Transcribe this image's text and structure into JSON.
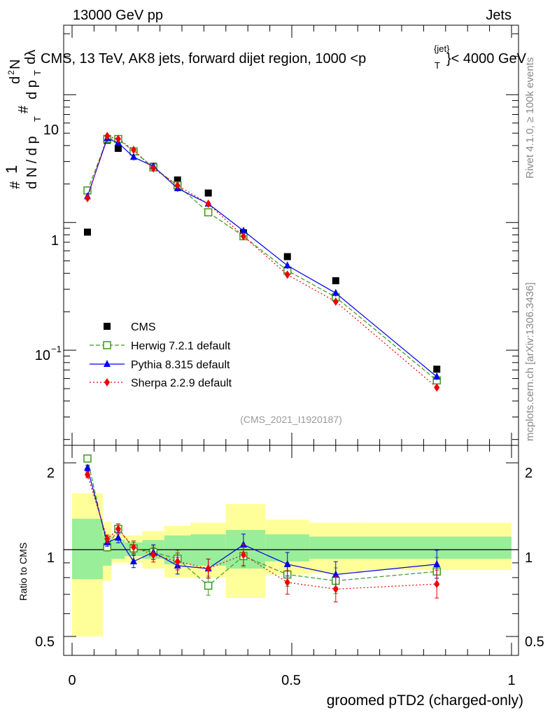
{
  "header": {
    "left": "13000 GeV pp",
    "right": "Jets"
  },
  "side_labels": {
    "rivet": "Rivet 4.1.0, ≥ 100k events",
    "mcplots": "mcplots.cern.ch [arXiv:1306.3436]"
  },
  "chart_data": [
    {
      "type": "scatter",
      "panel": "main",
      "title": "CMS, 13 TeV, AK8 jets, forward dijet region, 1000 <p",
      "title_super": "{jet}",
      "title_sub": "T",
      "title_tail": "}< 4000 GeV",
      "analysis_tag": "(CMS_2021_I1920187)",
      "ylabel_parts": [
        "#",
        "1",
        "d N / d p",
        "T",
        "#",
        "d p",
        "T",
        "d",
        "2",
        "N",
        "dλ"
      ],
      "yscale": "log",
      "ylim": [
        0.018,
        35
      ],
      "xlim": [
        -0.02,
        1.0
      ],
      "ytick_labels": [
        "10",
        "1",
        "10"
      ],
      "ytick_exp": "−1",
      "legend": [
        "CMS",
        "Herwig 7.2.1 default",
        "Pythia 8.315 default",
        "Sherpa 2.2.9 default"
      ],
      "x": [
        0.035,
        0.08,
        0.105,
        0.14,
        0.185,
        0.24,
        0.31,
        0.39,
        0.49,
        0.6,
        0.83
      ],
      "series": [
        {
          "name": "CMS",
          "color": "#000000",
          "marker": "square",
          "values": [
            0.84,
            4.4,
            3.8,
            3.6,
            2.75,
            2.15,
            1.7,
            0.83,
            0.54,
            0.35,
            0.071
          ]
        },
        {
          "name": "Herwig 7.2.1 default",
          "color": "#3a9a1a",
          "marker": "open-square",
          "dash": "6,3",
          "values": [
            1.78,
            4.5,
            4.5,
            3.6,
            2.7,
            1.95,
            1.2,
            0.78,
            0.42,
            0.26,
            0.058
          ]
        },
        {
          "name": "Pythia 8.315 default",
          "color": "#0000ee",
          "marker": "triangle",
          "dash": "",
          "values": [
            1.6,
            4.55,
            4.2,
            3.25,
            2.75,
            1.85,
            1.4,
            0.86,
            0.46,
            0.28,
            0.062
          ]
        },
        {
          "name": "Sherpa 2.2.9 default",
          "color": "#ee0000",
          "marker": "diamond",
          "dash": "2,3",
          "values": [
            1.55,
            4.75,
            4.5,
            3.7,
            2.65,
            1.95,
            1.4,
            0.78,
            0.39,
            0.24,
            0.051
          ]
        }
      ]
    },
    {
      "type": "scatter",
      "panel": "ratio",
      "ylabel": "Ratio to CMS",
      "xlabel": "groomed pTD2 (charged-only)",
      "yscale": "log",
      "ylim": [
        0.43,
        2.3
      ],
      "xlim": [
        -0.02,
        1.0
      ],
      "ytick_labels": [
        "2",
        "1",
        "0.5"
      ],
      "xtick_labels": [
        "0",
        "0.5",
        "1"
      ],
      "bins": [
        0,
        0.07,
        0.09,
        0.12,
        0.16,
        0.21,
        0.27,
        0.35,
        0.44,
        0.54,
        0.66,
        1.0
      ],
      "band_inner": [
        [
          0.79,
          1.28
        ],
        [
          0.88,
          1.12
        ],
        [
          0.93,
          1.08
        ],
        [
          0.95,
          1.06
        ],
        [
          0.93,
          1.08
        ],
        [
          0.89,
          1.12
        ],
        [
          0.88,
          1.13
        ],
        [
          0.86,
          1.17
        ],
        [
          0.91,
          1.13
        ],
        [
          0.93,
          1.11
        ],
        [
          0.93,
          1.11
        ]
      ],
      "band_outer": [
        [
          0.5,
          1.57
        ],
        [
          0.78,
          1.25
        ],
        [
          0.9,
          1.13
        ],
        [
          0.9,
          1.12
        ],
        [
          0.86,
          1.16
        ],
        [
          0.8,
          1.21
        ],
        [
          0.8,
          1.24
        ],
        [
          0.68,
          1.44
        ],
        [
          0.82,
          1.27
        ],
        [
          0.83,
          1.24
        ],
        [
          0.85,
          1.24
        ]
      ],
      "x": [
        0.035,
        0.08,
        0.105,
        0.14,
        0.185,
        0.24,
        0.31,
        0.39,
        0.49,
        0.6,
        0.83
      ],
      "series": [
        {
          "name": "Herwig 7.2.1 default",
          "color": "#3a9a1a",
          "marker": "open-square",
          "dash": "6,3",
          "values": [
            2.07,
            1.02,
            1.18,
            1.01,
            0.98,
            0.93,
            0.75,
            0.95,
            0.82,
            0.78,
            0.84
          ]
        },
        {
          "name": "Pythia 8.315 default",
          "color": "#0000ee",
          "marker": "triangle",
          "dash": "",
          "values": [
            1.92,
            1.06,
            1.1,
            0.91,
            0.98,
            0.88,
            0.86,
            1.04,
            0.89,
            0.82,
            0.89
          ]
        },
        {
          "name": "Sherpa 2.2.9 default",
          "color": "#ee0000",
          "marker": "diamond",
          "dash": "2,3",
          "values": [
            1.82,
            1.09,
            1.18,
            1.02,
            0.96,
            0.91,
            0.86,
            0.96,
            0.77,
            0.73,
            0.76
          ]
        }
      ]
    }
  ]
}
